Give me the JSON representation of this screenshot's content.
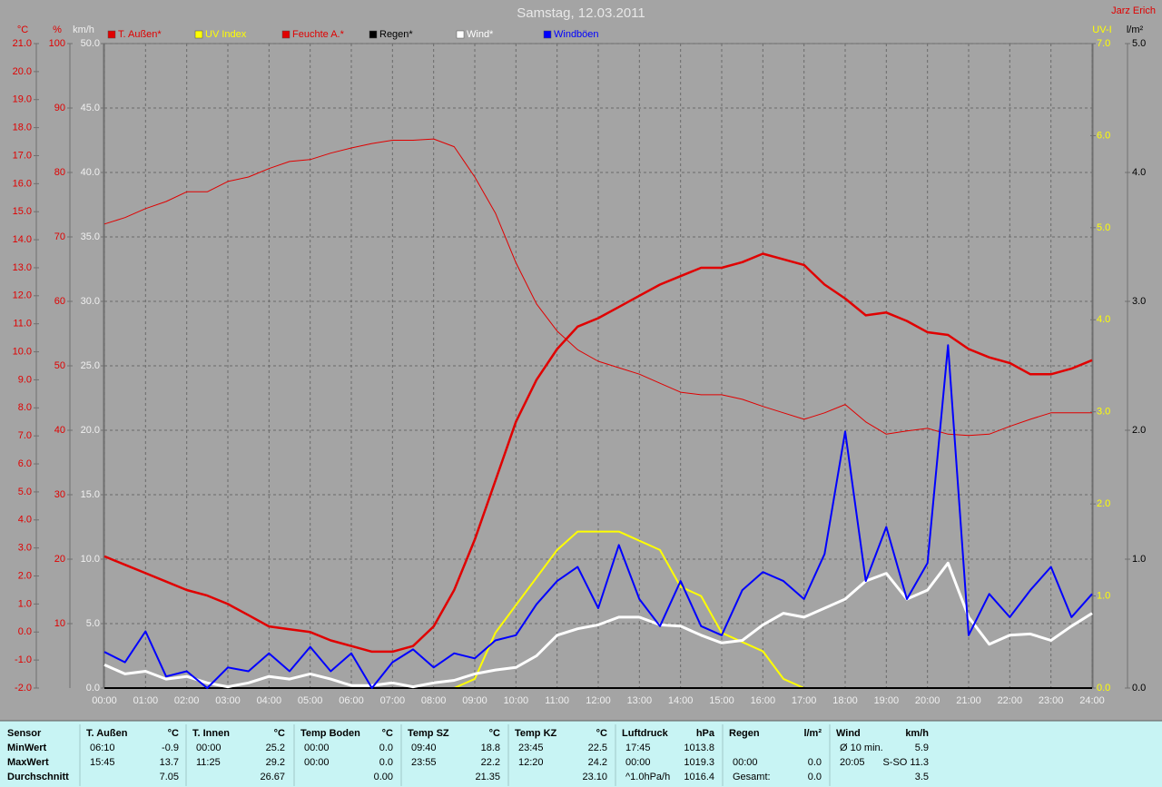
{
  "chart_data": {
    "type": "line",
    "title": "Samstag, 12.03.2011",
    "author": "Jarz Erich",
    "grid": true,
    "legend": "top",
    "xlim": [
      0,
      24
    ],
    "xticks": [
      {
        "value": 0,
        "label": "00:00"
      },
      {
        "value": 1,
        "label": "01:00"
      },
      {
        "value": 2,
        "label": "02:00"
      },
      {
        "value": 3,
        "label": "03:00"
      },
      {
        "value": 4,
        "label": "04:00"
      },
      {
        "value": 5,
        "label": "05:00"
      },
      {
        "value": 6,
        "label": "06:00"
      },
      {
        "value": 7,
        "label": "07:00"
      },
      {
        "value": 8,
        "label": "08:00"
      },
      {
        "value": 9,
        "label": "09:00"
      },
      {
        "value": 10,
        "label": "10:00"
      },
      {
        "value": 11,
        "label": "11:00"
      },
      {
        "value": 12,
        "label": "12:00"
      },
      {
        "value": 13,
        "label": "13:00"
      },
      {
        "value": 14,
        "label": "14:00"
      },
      {
        "value": 15,
        "label": "15:00"
      },
      {
        "value": 16,
        "label": "16:00"
      },
      {
        "value": 17,
        "label": "17:00"
      },
      {
        "value": 18,
        "label": "18:00"
      },
      {
        "value": 19,
        "label": "19:00"
      },
      {
        "value": 20,
        "label": "20:00"
      },
      {
        "value": 21,
        "label": "21:00"
      },
      {
        "value": 22,
        "label": "22:00"
      },
      {
        "value": 23,
        "label": "23:00"
      },
      {
        "value": 24,
        "label": "24:00"
      }
    ],
    "axes": [
      {
        "unit": "°C",
        "color": "#e00000",
        "side": "left",
        "lim": [
          -2,
          21
        ],
        "ticks": [
          {
            "value": -2,
            "label": "-2.0"
          },
          {
            "value": -1,
            "label": "-1.0"
          },
          {
            "value": 0,
            "label": "0.0"
          },
          {
            "value": 1,
            "label": "1.0"
          },
          {
            "value": 2,
            "label": "2.0"
          },
          {
            "value": 3,
            "label": "3.0"
          },
          {
            "value": 4,
            "label": "4.0"
          },
          {
            "value": 5,
            "label": "5.0"
          },
          {
            "value": 6,
            "label": "6.0"
          },
          {
            "value": 7,
            "label": "7.0"
          },
          {
            "value": 8,
            "label": "8.0"
          },
          {
            "value": 9,
            "label": "9.0"
          },
          {
            "value": 10,
            "label": "10.0"
          },
          {
            "value": 11,
            "label": "11.0"
          },
          {
            "value": 12,
            "label": "12.0"
          },
          {
            "value": 13,
            "label": "13.0"
          },
          {
            "value": 14,
            "label": "14.0"
          },
          {
            "value": 15,
            "label": "15.0"
          },
          {
            "value": 16,
            "label": "16.0"
          },
          {
            "value": 17,
            "label": "17.0"
          },
          {
            "value": 18,
            "label": "18.0"
          },
          {
            "value": 19,
            "label": "19.0"
          },
          {
            "value": 20,
            "label": "20.0"
          },
          {
            "value": 21,
            "label": "21.0"
          }
        ]
      },
      {
        "unit": "%",
        "color": "#e00000",
        "side": "left",
        "lim": [
          0,
          100
        ],
        "ticks": [
          10,
          20,
          30,
          40,
          50,
          60,
          70,
          80,
          90,
          100
        ]
      },
      {
        "unit": "km/h",
        "color": "#f0f0f0",
        "side": "left",
        "lim": [
          0,
          50
        ],
        "ticks": [
          {
            "value": 0,
            "label": "0.0"
          },
          {
            "value": 5,
            "label": "5.0"
          },
          {
            "value": 10,
            "label": "10.0"
          },
          {
            "value": 15,
            "label": "15.0"
          },
          {
            "value": 20,
            "label": "20.0"
          },
          {
            "value": 25,
            "label": "25.0"
          },
          {
            "value": 30,
            "label": "30.0"
          },
          {
            "value": 35,
            "label": "35.0"
          },
          {
            "value": 40,
            "label": "40.0"
          },
          {
            "value": 45,
            "label": "45.0"
          },
          {
            "value": 50,
            "label": "50.0"
          }
        ]
      },
      {
        "unit": "UV-I",
        "color": "#ffff00",
        "side": "right",
        "lim": [
          0,
          7
        ],
        "ticks": [
          {
            "value": 0,
            "label": "0.0"
          },
          {
            "value": 1,
            "label": "1.0"
          },
          {
            "value": 2,
            "label": "2.0"
          },
          {
            "value": 3,
            "label": "3.0"
          },
          {
            "value": 4,
            "label": "4.0"
          },
          {
            "value": 5,
            "label": "5.0"
          },
          {
            "value": 6,
            "label": "6.0"
          },
          {
            "value": 7,
            "label": "7.0"
          }
        ]
      },
      {
        "unit": "l/m²",
        "color": "#000000",
        "side": "right",
        "lim": [
          0,
          5
        ],
        "ticks": [
          {
            "value": 0,
            "label": "0.0"
          },
          {
            "value": 1,
            "label": "1.0"
          },
          {
            "value": 2,
            "label": "2.0"
          },
          {
            "value": 3,
            "label": "3.0"
          },
          {
            "value": 4,
            "label": "4.0"
          },
          {
            "value": 5,
            "label": "5.0"
          }
        ]
      }
    ],
    "x": [
      0,
      0.5,
      1,
      1.5,
      2,
      2.5,
      3,
      3.5,
      4,
      4.5,
      5,
      5.5,
      6,
      6.5,
      7,
      7.5,
      8,
      8.5,
      9,
      9.5,
      10,
      10.5,
      11,
      11.5,
      12,
      12.5,
      13,
      13.5,
      14,
      14.5,
      15,
      15.5,
      16,
      16.5,
      17,
      17.5,
      18,
      18.5,
      19,
      19.5,
      20,
      20.5,
      21,
      21.5,
      22,
      22.5,
      23,
      23.5,
      24
    ],
    "series": [
      {
        "name": "T. Außen*",
        "color": "#e00000",
        "width": 2.5,
        "axis": 0,
        "values": [
          2.7,
          2.4,
          2.1,
          1.8,
          1.5,
          1.3,
          1.0,
          0.6,
          0.2,
          0.1,
          0.0,
          -0.3,
          -0.5,
          -0.7,
          -0.7,
          -0.5,
          0.2,
          1.5,
          3.3,
          5.4,
          7.5,
          9.0,
          10.1,
          10.9,
          11.2,
          11.6,
          12.0,
          12.4,
          12.7,
          13.0,
          13.0,
          13.2,
          13.5,
          13.3,
          13.1,
          12.4,
          11.9,
          11.3,
          11.4,
          11.1,
          10.7,
          10.6,
          10.1,
          9.8,
          9.6,
          9.2,
          9.2,
          9.4,
          9.7
        ]
      },
      {
        "name": "UV Index",
        "color": "#ffff00",
        "width": 2,
        "axis": 3,
        "values": [
          0,
          0,
          0,
          0,
          0,
          0,
          0,
          0,
          0,
          0,
          0,
          0,
          0,
          0,
          0,
          0,
          0,
          0,
          0.1,
          0.6,
          0.9,
          1.2,
          1.5,
          1.7,
          1.7,
          1.7,
          1.6,
          1.5,
          1.1,
          1.0,
          0.6,
          0.5,
          0.4,
          0.1,
          0,
          0,
          0,
          0,
          0,
          0,
          0,
          0,
          0,
          0,
          0,
          0,
          0,
          0,
          0
        ]
      },
      {
        "name": "Feuchte A.*",
        "color": "#e00000",
        "width": 1,
        "axis": 1,
        "values": [
          72,
          73,
          74.4,
          75.5,
          77,
          77,
          78.6,
          79.3,
          80.6,
          81.7,
          82,
          83,
          83.8,
          84.5,
          85,
          85,
          85.2,
          84,
          79.3,
          73.7,
          66,
          59.6,
          55.4,
          52.5,
          50.7,
          49.7,
          48.7,
          47.3,
          45.9,
          45.5,
          45.5,
          44.8,
          43.7,
          42.7,
          41.7,
          42.7,
          44,
          41.3,
          39.4,
          39.9,
          40.3,
          39.4,
          39.2,
          39.4,
          40.6,
          41.7,
          42.7,
          42.7,
          42.7
        ]
      },
      {
        "name": "Regen*",
        "color": "#000000",
        "width": 2,
        "axis": 4,
        "values": [
          0,
          0,
          0,
          0,
          0,
          0,
          0,
          0,
          0,
          0,
          0,
          0,
          0,
          0,
          0,
          0,
          0,
          0,
          0,
          0,
          0,
          0,
          0,
          0,
          0,
          0,
          0,
          0,
          0,
          0,
          0,
          0,
          0,
          0,
          0,
          0,
          0,
          0,
          0,
          0,
          0,
          0,
          0,
          0,
          0,
          0,
          0,
          0,
          0
        ]
      },
      {
        "name": "Wind*",
        "color": "#ffffff",
        "width": 3,
        "axis": 2,
        "values": [
          1.8,
          1.1,
          1.3,
          0.7,
          0.9,
          0.4,
          0.1,
          0.4,
          0.9,
          0.7,
          1.1,
          0.7,
          0.2,
          0.2,
          0.4,
          0.1,
          0.4,
          0.6,
          1.1,
          1.4,
          1.6,
          2.5,
          4.1,
          4.6,
          4.9,
          5.5,
          5.5,
          4.9,
          4.8,
          4.1,
          3.5,
          3.7,
          4.9,
          5.8,
          5.5,
          6.2,
          6.9,
          8.3,
          8.9,
          6.9,
          7.6,
          9.7,
          5.5,
          3.4,
          4.1,
          4.2,
          3.7,
          4.8,
          5.8
        ]
      },
      {
        "name": "Windböen",
        "color": "#0000ff",
        "width": 2,
        "axis": 2,
        "values": [
          2.8,
          2.0,
          4.4,
          0.9,
          1.3,
          0,
          1.6,
          1.3,
          2.7,
          1.3,
          3.2,
          1.3,
          2.7,
          0,
          2.0,
          3.0,
          1.6,
          2.7,
          2.3,
          3.7,
          4.1,
          6.5,
          8.3,
          9.4,
          6.2,
          11.1,
          6.9,
          4.8,
          8.3,
          4.8,
          4.1,
          7.6,
          9.0,
          8.3,
          6.9,
          10.4,
          19.9,
          8.3,
          12.5,
          6.9,
          9.7,
          26.6,
          4.1,
          7.3,
          5.5,
          7.6,
          9.4,
          5.5,
          7.3
        ]
      }
    ]
  },
  "table": {
    "row_labels": [
      "Sensor",
      "MinWert",
      "MaxWert",
      "Durchschnitt"
    ],
    "groups": [
      {
        "title": "T. Außen",
        "unit": "°C",
        "min": {
          "time": "06:10",
          "value": "-0.9"
        },
        "max": {
          "time": "15:45",
          "value": "13.7"
        },
        "avg": {
          "value": "7.05"
        }
      },
      {
        "title": "T. Innen",
        "unit": "°C",
        "min": {
          "time": "00:00",
          "value": "25.2"
        },
        "max": {
          "time": "11:25",
          "value": "29.2"
        },
        "avg": {
          "value": "26.67"
        }
      },
      {
        "title": "Temp Boden",
        "unit": "°C",
        "min": {
          "time": "00:00",
          "value": "0.0"
        },
        "max": {
          "time": "00:00",
          "value": "0.0"
        },
        "avg": {
          "value": "0.00"
        }
      },
      {
        "title": "Temp SZ",
        "unit": "°C",
        "min": {
          "time": "09:40",
          "value": "18.8"
        },
        "max": {
          "time": "23:55",
          "value": "22.2"
        },
        "avg": {
          "value": "21.35"
        }
      },
      {
        "title": "Temp KZ",
        "unit": "°C",
        "min": {
          "time": "23:45",
          "value": "22.5"
        },
        "max": {
          "time": "12:20",
          "value": "24.2"
        },
        "avg": {
          "value": "23.10"
        }
      },
      {
        "title": "Luftdruck",
        "unit": "hPa",
        "min": {
          "time": "17:45",
          "value": "1013.8"
        },
        "max": {
          "time": "00:00",
          "value": "1019.3"
        },
        "avg": {
          "time": "^1.0hPa/h",
          "value": "1016.4"
        }
      },
      {
        "title": "Regen",
        "unit": "l/m²",
        "min": {},
        "max": {
          "time": "00:00",
          "value": "0.0"
        },
        "avg": {
          "time": "Gesamt:",
          "value": "0.0"
        }
      },
      {
        "title": "Wind",
        "unit": "km/h",
        "min": {
          "time": "Ø 10 min.",
          "value": "5.9"
        },
        "max": {
          "time": "20:05",
          "value": "S-SO 11.3"
        },
        "avg": {
          "value": "3.5"
        }
      }
    ]
  }
}
